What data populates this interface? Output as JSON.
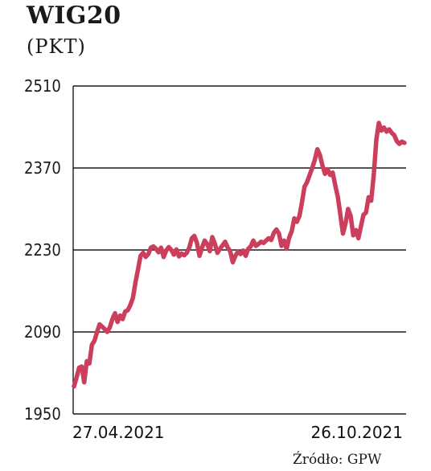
{
  "chart_data": {
    "type": "line",
    "title": "WIG20",
    "subtitle": "(PKT)",
    "source": "Źródło: GPW",
    "x_labels": [
      "27.04.2021",
      "26.10.2021"
    ],
    "ylim": [
      1950,
      2510
    ],
    "yticks": [
      1950,
      2090,
      2230,
      2370,
      2510
    ],
    "grid": true,
    "line_color": "#cc3f5c",
    "series": [
      {
        "values": [
          1997,
          2012,
          2029,
          2031,
          2004,
          2040,
          2036,
          2068,
          2075,
          2090,
          2103,
          2099,
          2095,
          2090,
          2098,
          2112,
          2122,
          2107,
          2118,
          2112,
          2125,
          2127,
          2136,
          2148,
          2175,
          2197,
          2220,
          2225,
          2218,
          2223,
          2234,
          2236,
          2232,
          2226,
          2234,
          2218,
          2229,
          2235,
          2230,
          2222,
          2231,
          2219,
          2224,
          2221,
          2225,
          2234,
          2250,
          2254,
          2242,
          2220,
          2234,
          2246,
          2240,
          2228,
          2252,
          2241,
          2225,
          2232,
          2238,
          2244,
          2234,
          2228,
          2209,
          2220,
          2227,
          2223,
          2229,
          2220,
          2232,
          2236,
          2246,
          2237,
          2240,
          2244,
          2242,
          2246,
          2250,
          2247,
          2259,
          2265,
          2258,
          2237,
          2246,
          2232,
          2251,
          2262,
          2284,
          2278,
          2288,
          2312,
          2338,
          2346,
          2358,
          2370,
          2384,
          2402,
          2392,
          2374,
          2360,
          2368,
          2358,
          2362,
          2340,
          2320,
          2290,
          2258,
          2275,
          2300,
          2288,
          2255,
          2264,
          2250,
          2270,
          2290,
          2294,
          2320,
          2314,
          2358,
          2418,
          2447,
          2434,
          2439,
          2432,
          2436,
          2430,
          2426,
          2416,
          2411,
          2415,
          2413
        ]
      }
    ]
  }
}
